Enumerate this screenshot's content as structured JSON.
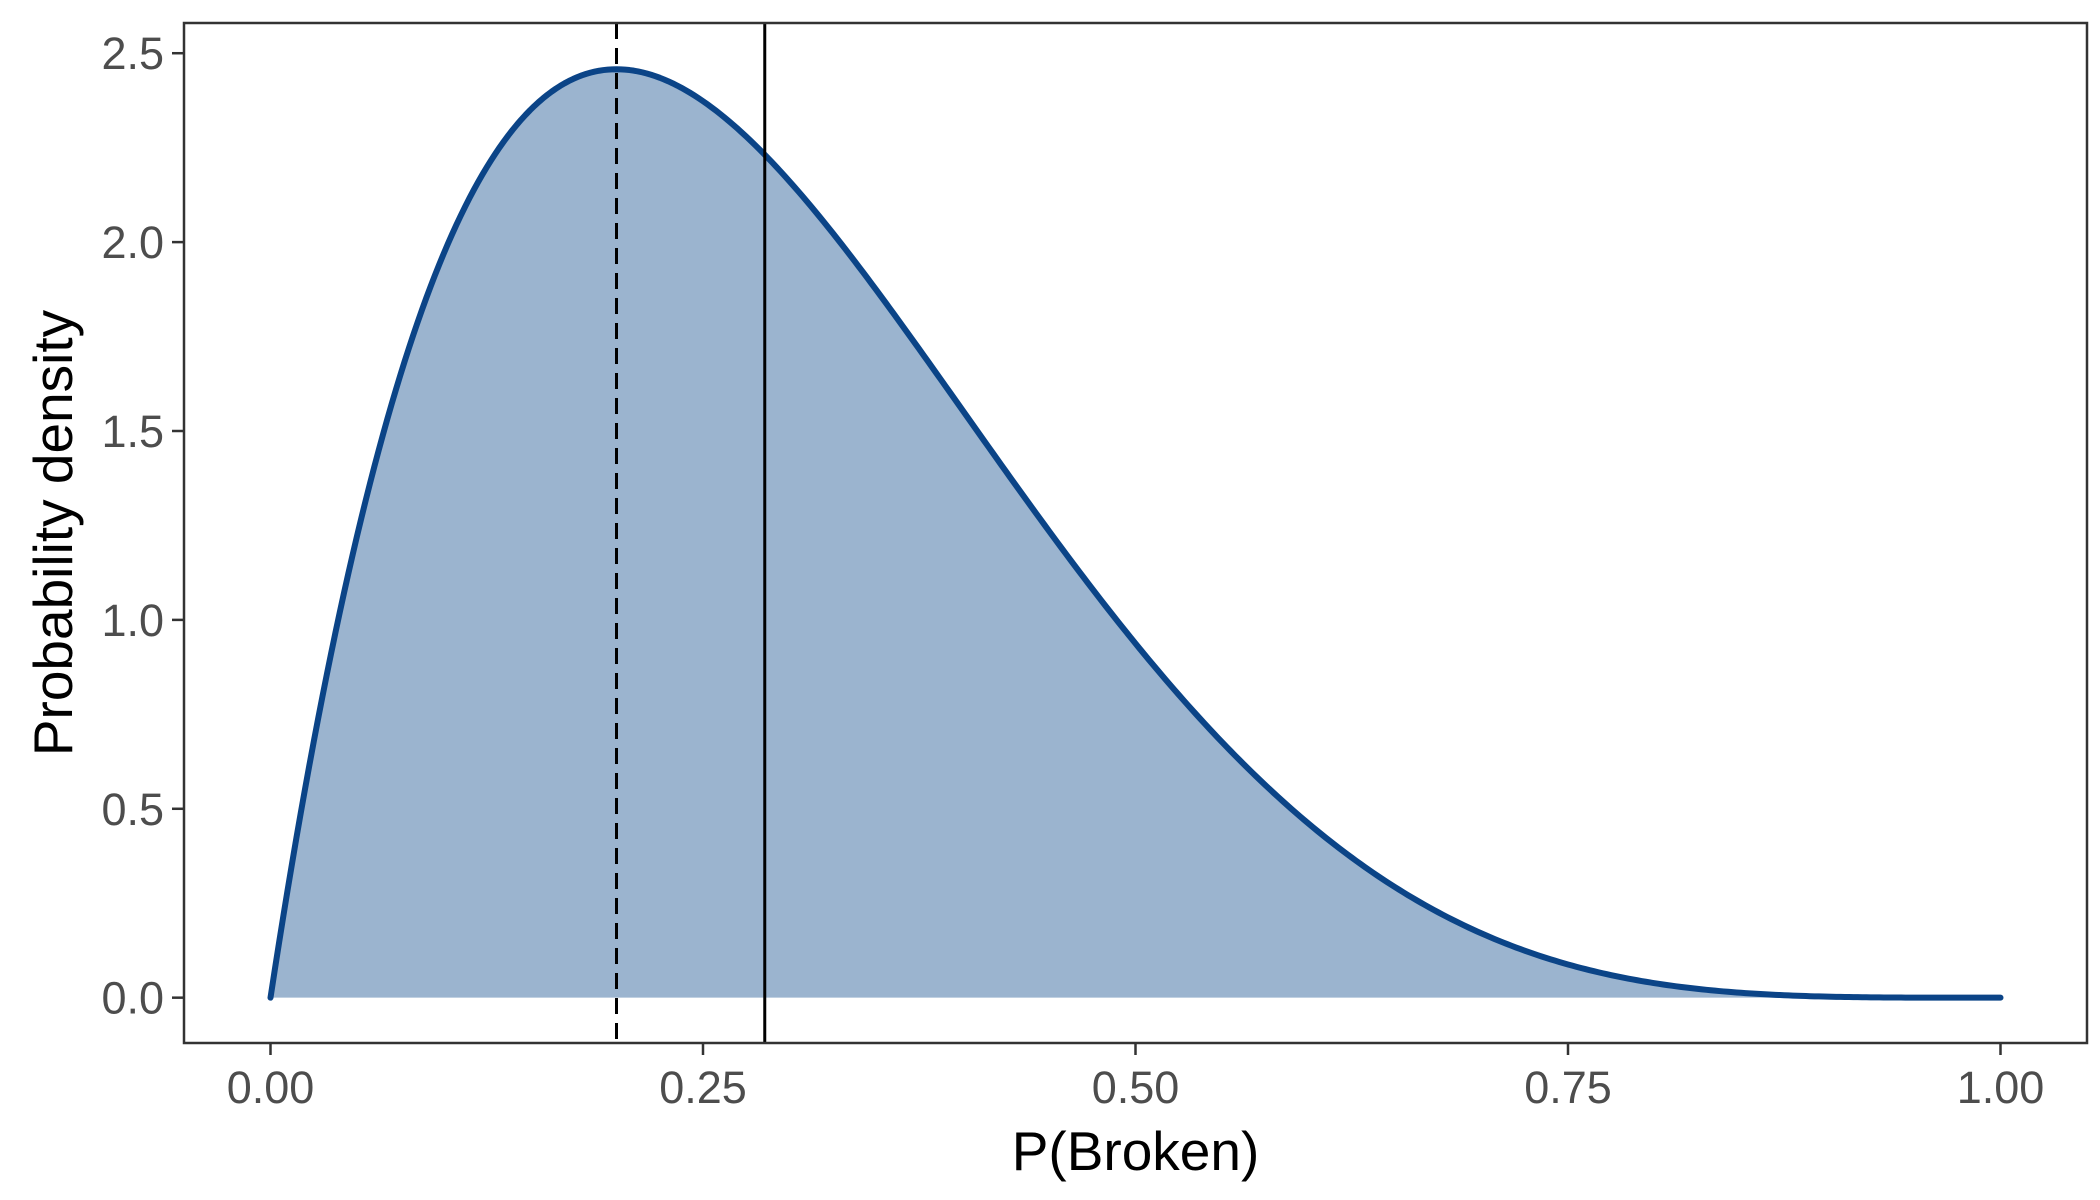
{
  "chart_data": {
    "type": "area",
    "title": "",
    "xlabel": "P(Broken)",
    "ylabel": "Probability density",
    "xlim": [
      -0.05,
      1.05
    ],
    "ylim": [
      -0.12,
      2.58
    ],
    "x_ticks": [
      "0.00",
      "0.25",
      "0.50",
      "0.75",
      "1.00"
    ],
    "y_ticks": [
      "0.0",
      "0.5",
      "1.0",
      "1.5",
      "2.0",
      "2.5"
    ],
    "grid": false,
    "legend": "none",
    "series": [
      {
        "distribution": "beta",
        "alpha": 2,
        "beta": 5,
        "x_range": [
          0,
          1
        ],
        "fill_color": "#9bb4cf",
        "line_color": "#0b4487"
      }
    ],
    "reference_lines": [
      {
        "x": 0.2,
        "style": "dashed",
        "color": "#000000"
      },
      {
        "x": 0.2857,
        "style": "solid",
        "color": "#000000"
      }
    ]
  }
}
